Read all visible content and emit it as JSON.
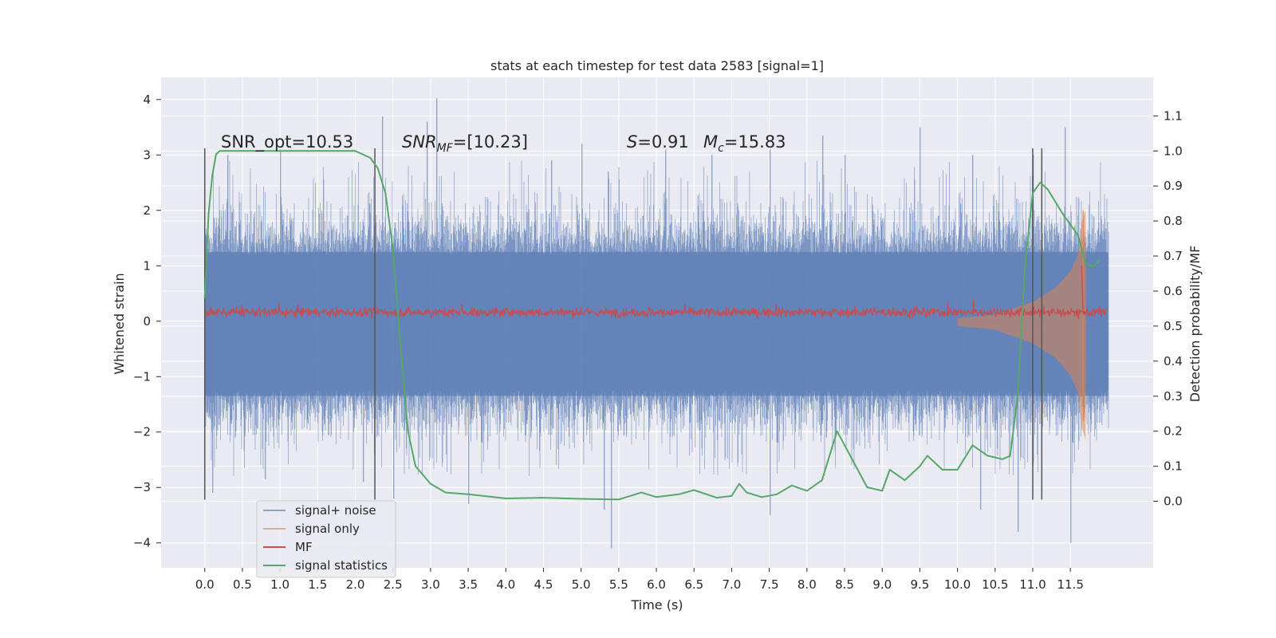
{
  "chart_data": {
    "type": "line",
    "title": "stats at each timestep for test data 2583 [signal=1]",
    "xlabel": "Time (s)",
    "ylabel": "Whitened strain",
    "ylabel_right": "Detection probability/MF",
    "xlim": [
      -0.58,
      12.6
    ],
    "ylim": [
      -4.45,
      4.4
    ],
    "ylim_right": [
      -0.19,
      1.21
    ],
    "x_ticks": [
      0.0,
      0.5,
      1.0,
      1.5,
      2.0,
      2.5,
      3.0,
      3.5,
      4.0,
      4.5,
      5.0,
      5.5,
      6.0,
      6.5,
      7.0,
      7.5,
      8.0,
      8.5,
      9.0,
      9.5,
      10.0,
      10.5,
      11.0,
      11.5
    ],
    "x_tick_labels": [
      "0.0",
      "0.5",
      "1.0",
      "1.5",
      "2.0",
      "2.5",
      "3.0",
      "3.5",
      "4.0",
      "4.5",
      "5.0",
      "5.5",
      "6.0",
      "6.5",
      "7.0",
      "7.5",
      "8.0",
      "8.5",
      "9.0",
      "9.5",
      "10.0",
      "10.5",
      "11.0",
      "11.5"
    ],
    "y_ticks": [
      -4,
      -3,
      -2,
      -1,
      0,
      1,
      2,
      3,
      4
    ],
    "y_tick_labels": [
      "−4",
      "−3",
      "−2",
      "−1",
      "0",
      "1",
      "2",
      "3",
      "4"
    ],
    "y_ticks_right": [
      0.0,
      0.1,
      0.2,
      0.3,
      0.4,
      0.5,
      0.6,
      0.7,
      0.8,
      0.9,
      1.0,
      1.1
    ],
    "y_tick_labels_right": [
      "0.0",
      "0.1",
      "0.2",
      "0.3",
      "0.4",
      "0.5",
      "0.6",
      "0.7",
      "0.8",
      "0.9",
      "1.0",
      "1.1"
    ],
    "grid": true,
    "legend_position": "lower-left",
    "annotations": {
      "snr_opt": "SNR_opt=10.53",
      "snr_mf_main": "SNR",
      "snr_mf_sub": "MF",
      "snr_mf_value": "=[10.23]",
      "s_main": "S",
      "s_value": "=0.91",
      "mc_main": "M",
      "mc_sub": "c",
      "mc_value": "=15.83"
    },
    "vertical_lines_x": [
      0.0,
      2.26,
      11.0,
      11.12
    ],
    "series": [
      {
        "name": "signal+ noise",
        "color": "#4c72b0",
        "axis": "left",
        "description_x_range": [
          0.0,
          12.0
        ],
        "envelope_upper_typical": 2.2,
        "envelope_lower_typical": -2.3,
        "peaks": [
          [
            0.3,
            3.0
          ],
          [
            1.0,
            3.1
          ],
          [
            2.35,
            3.7
          ],
          [
            2.95,
            3.6
          ],
          [
            3.07,
            4.02
          ],
          [
            4.6,
            2.9
          ],
          [
            5.0,
            3.2
          ],
          [
            5.35,
            2.7
          ],
          [
            6.12,
            3.1
          ],
          [
            6.73,
            3.0
          ],
          [
            7.5,
            3.1
          ],
          [
            8.2,
            3.35
          ],
          [
            8.5,
            3.0
          ],
          [
            9.5,
            3.5
          ],
          [
            10.2,
            3.0
          ],
          [
            11.0,
            3.0
          ],
          [
            11.42,
            3.5
          ]
        ],
        "troughs": [
          [
            0.1,
            -3.1
          ],
          [
            0.8,
            -2.85
          ],
          [
            2.1,
            -2.9
          ],
          [
            2.5,
            -3.2
          ],
          [
            3.5,
            -3.3
          ],
          [
            5.4,
            -4.1
          ],
          [
            5.3,
            -3.4
          ],
          [
            7.5,
            -3.5
          ],
          [
            10.3,
            -3.4
          ],
          [
            10.8,
            -3.8
          ],
          [
            11.5,
            -4.0
          ]
        ]
      },
      {
        "name": "signal only",
        "color": "#dd8452",
        "axis": "left",
        "chirp_start_x": 10.0,
        "chirp_end_x": 11.72,
        "chirp_amplitude": [
          [
            10.0,
            0.05
          ],
          [
            10.5,
            0.12
          ],
          [
            11.0,
            0.35
          ],
          [
            11.3,
            0.6
          ],
          [
            11.5,
            0.9
          ],
          [
            11.6,
            1.2
          ],
          [
            11.65,
            1.8
          ],
          [
            11.7,
            2.0
          ]
        ]
      },
      {
        "name": "MF",
        "color": "#c44e52",
        "axis": "left",
        "mean": 0.16,
        "range": [
          0.03,
          0.38
        ],
        "spike": [
          11.65,
          1.0
        ],
        "x_range": [
          0.0,
          11.98
        ]
      },
      {
        "name": "signal statistics",
        "color": "#55a868",
        "axis": "right",
        "x": [
          0.0,
          0.05,
          0.1,
          0.15,
          0.2,
          0.4,
          1.0,
          1.5,
          2.0,
          2.1,
          2.2,
          2.3,
          2.4,
          2.5,
          2.6,
          2.7,
          2.8,
          3.0,
          3.2,
          3.5,
          4.0,
          4.5,
          5.0,
          5.5,
          5.8,
          6.0,
          6.3,
          6.5,
          6.8,
          7.0,
          7.1,
          7.2,
          7.4,
          7.6,
          7.8,
          8.0,
          8.2,
          8.4,
          8.6,
          8.8,
          9.0,
          9.1,
          9.3,
          9.5,
          9.6,
          9.8,
          10.0,
          10.2,
          10.4,
          10.6,
          10.7,
          10.8,
          10.9,
          11.0,
          11.1,
          11.2,
          11.4,
          11.6,
          11.7,
          11.8,
          11.9
        ],
        "y": [
          0.58,
          0.82,
          0.93,
          0.99,
          1.0,
          1.0,
          1.0,
          1.0,
          1.0,
          0.99,
          0.98,
          0.95,
          0.88,
          0.72,
          0.45,
          0.2,
          0.1,
          0.05,
          0.025,
          0.02,
          0.008,
          0.01,
          0.007,
          0.005,
          0.025,
          0.012,
          0.02,
          0.032,
          0.01,
          0.015,
          0.05,
          0.025,
          0.012,
          0.02,
          0.045,
          0.03,
          0.06,
          0.2,
          0.12,
          0.04,
          0.03,
          0.09,
          0.06,
          0.1,
          0.13,
          0.09,
          0.09,
          0.16,
          0.13,
          0.12,
          0.13,
          0.3,
          0.68,
          0.88,
          0.91,
          0.89,
          0.82,
          0.76,
          0.68,
          0.67,
          0.69
        ]
      }
    ]
  }
}
